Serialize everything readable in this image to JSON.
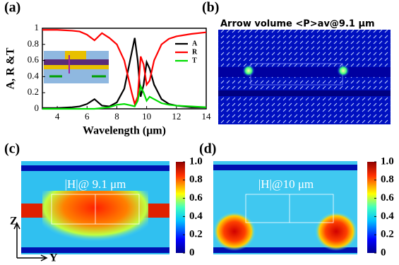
{
  "panels": {
    "a": {
      "label": "(a)"
    },
    "b": {
      "label": "(b)",
      "title": "Arrow volume <P>av@9.1 μm"
    },
    "c": {
      "label": "(c)",
      "annotation": "|H|@ 9.1 μm"
    },
    "d": {
      "label": "(d)",
      "annotation": "|H|@10 μm"
    }
  },
  "axes_labels": {
    "z": "Z",
    "y": "Y"
  },
  "chart_data": [
    {
      "type": "line",
      "xlabel": "Wavelength (μm)",
      "ylabel": "A, R &T",
      "xlim": [
        3,
        14
      ],
      "ylim": [
        0,
        1
      ],
      "xticks": [
        4,
        6,
        8,
        10,
        12,
        14
      ],
      "yticks": [
        0,
        0.2,
        0.4,
        0.6,
        0.8,
        1
      ],
      "legend": "upper right",
      "x": [
        3,
        4,
        5,
        5.5,
        6,
        6.5,
        7,
        7.5,
        8,
        8.5,
        9,
        9.2,
        9.4,
        9.6,
        9.8,
        10,
        10.2,
        10.5,
        11,
        11.5,
        12,
        13,
        14
      ],
      "series": [
        {
          "name": "A",
          "color": "#000000",
          "values": [
            0.01,
            0.01,
            0.02,
            0.03,
            0.06,
            0.12,
            0.04,
            0.03,
            0.08,
            0.25,
            0.7,
            0.88,
            0.6,
            0.15,
            0.3,
            0.58,
            0.5,
            0.3,
            0.12,
            0.06,
            0.04,
            0.02,
            0.02
          ]
        },
        {
          "name": "R",
          "color": "#ff0000",
          "values": [
            0.98,
            0.98,
            0.97,
            0.96,
            0.92,
            0.85,
            0.94,
            0.88,
            0.8,
            0.6,
            0.2,
            0.06,
            0.15,
            0.65,
            0.55,
            0.3,
            0.35,
            0.6,
            0.8,
            0.87,
            0.9,
            0.93,
            0.95
          ]
        },
        {
          "name": "T",
          "color": "#00dd00",
          "values": [
            0,
            0,
            0,
            0,
            0,
            0,
            0.01,
            0.02,
            0.05,
            0.06,
            0.04,
            0.03,
            0.1,
            0.28,
            0.2,
            0.1,
            0.15,
            0.12,
            0.07,
            0.05,
            0.04,
            0.03,
            0.02
          ]
        }
      ]
    },
    {
      "type": "colorbar",
      "ylim": [
        0,
        1
      ],
      "yticks": [
        0,
        0.2,
        0.4,
        0.6,
        0.8,
        {
          "value": 1,
          "label": "1.0"
        }
      ]
    },
    {
      "type": "colorbar",
      "ylim": [
        0,
        1
      ],
      "yticks": [
        0,
        0.2,
        0.4,
        0.6,
        0.8,
        {
          "value": 1,
          "label": "1.0"
        }
      ]
    }
  ]
}
